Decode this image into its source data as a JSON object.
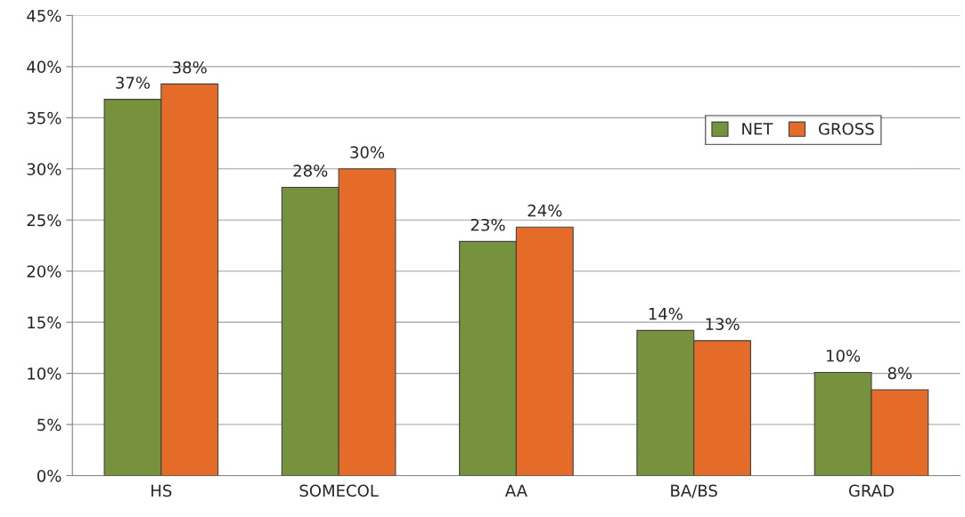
{
  "chart_data": {
    "type": "bar",
    "categories": [
      "HS",
      "SOMECOL",
      "AA",
      "BA/BS",
      "GRAD"
    ],
    "series": [
      {
        "name": "NET",
        "color": "#76923c",
        "values": [
          36.8,
          28.2,
          22.9,
          14.2,
          10.1
        ],
        "value_labels": [
          "37%",
          "28%",
          "23%",
          "14%",
          "10%"
        ]
      },
      {
        "name": "GROSS",
        "color": "#e46c28",
        "values": [
          38.3,
          30.0,
          24.3,
          13.2,
          8.4
        ],
        "value_labels": [
          "38%",
          "30%",
          "24%",
          "13%",
          "8%"
        ]
      }
    ],
    "ylim": [
      0,
      45
    ],
    "yticks": [
      {
        "value": 0,
        "label": "0%"
      },
      {
        "value": 5,
        "label": "5%"
      },
      {
        "value": 10,
        "label": "10%"
      },
      {
        "value": 15,
        "label": "15%"
      },
      {
        "value": 20,
        "label": "20%"
      },
      {
        "value": 25,
        "label": "25%"
      },
      {
        "value": 30,
        "label": "30%"
      },
      {
        "value": 35,
        "label": "35%"
      },
      {
        "value": 40,
        "label": "40%"
      },
      {
        "value": 45,
        "label": "45%"
      }
    ],
    "grid": "y",
    "legend": "top right"
  }
}
